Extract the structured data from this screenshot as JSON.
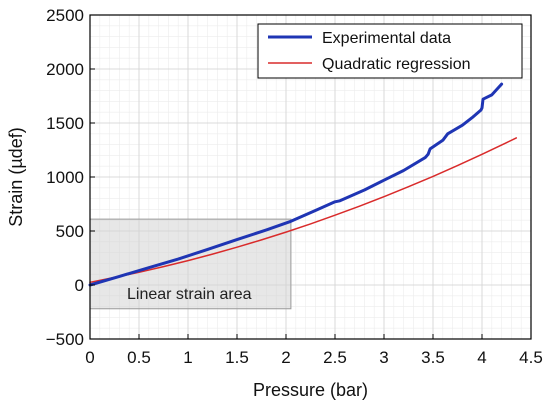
{
  "chart_data": {
    "type": "line",
    "xlabel": "Pressure (bar)",
    "ylabel": "Strain (µdef)",
    "xlim": [
      0,
      4.5
    ],
    "ylim": [
      -500,
      2500
    ],
    "x_ticks": [
      0,
      0.5,
      1,
      1.5,
      2,
      2.5,
      3,
      3.5,
      4,
      4.5
    ],
    "x_tick_labels": [
      "0",
      "0.5",
      "1",
      "1.5",
      "2",
      "2.5",
      "3",
      "3.5",
      "4",
      "4.5"
    ],
    "y_ticks": [
      -500,
      0,
      500,
      1000,
      1500,
      2000,
      2500
    ],
    "y_tick_labels": [
      "−500",
      "0",
      "500",
      "1000",
      "1500",
      "2000",
      "2500"
    ],
    "grid": true,
    "legend_position": "top-right",
    "series": [
      {
        "name": "Experimental data",
        "color": "#1f35b4",
        "x": [
          0,
          0.3,
          0.6,
          0.9,
          1.2,
          1.5,
          1.8,
          2.05,
          2.3,
          2.5,
          2.55,
          2.8,
          3.0,
          3.2,
          3.42,
          3.45,
          3.47,
          3.6,
          3.65,
          3.8,
          3.9,
          3.99,
          4.0,
          4.01,
          4.1,
          4.2
        ],
        "y": [
          0,
          80,
          160,
          240,
          330,
          420,
          510,
          590,
          690,
          770,
          780,
          880,
          970,
          1060,
          1180,
          1210,
          1260,
          1340,
          1400,
          1480,
          1550,
          1620,
          1640,
          1720,
          1760,
          1860
        ]
      },
      {
        "name": "Quadratic regression",
        "color": "#d92b2b",
        "x": [
          0,
          0.25,
          0.5,
          0.75,
          1,
          1.25,
          1.5,
          1.75,
          2,
          2.25,
          2.5,
          2.75,
          3,
          3.25,
          3.5,
          3.75,
          4,
          4.25,
          4.35
        ],
        "y": [
          25,
          70,
          118,
          170,
          226,
          286,
          350,
          418,
          490,
          566,
          646,
          730,
          818,
          910,
          1006,
          1106,
          1210,
          1318,
          1362
        ]
      }
    ],
    "annotations": [
      {
        "text": "Linear strain area",
        "x_range": [
          0,
          2.05
        ],
        "y_range": [
          -220,
          610
        ]
      }
    ]
  }
}
